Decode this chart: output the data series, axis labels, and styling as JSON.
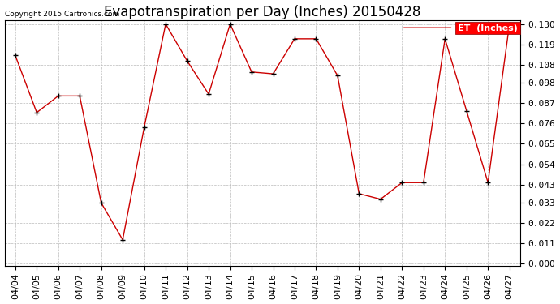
{
  "title": "Evapotranspiration per Day (Inches) 20150428",
  "copyright_text": "Copyright 2015 Cartronics.com",
  "legend_label": "ET  (Inches)",
  "dates": [
    "04/04",
    "04/05",
    "04/06",
    "04/07",
    "04/08",
    "04/09",
    "04/10",
    "04/11",
    "04/12",
    "04/13",
    "04/14",
    "04/15",
    "04/16",
    "04/17",
    "04/18",
    "04/19",
    "04/20",
    "04/21",
    "04/22",
    "04/23",
    "04/24",
    "04/25",
    "04/26",
    "04/27"
  ],
  "values": [
    0.113,
    0.082,
    0.091,
    0.091,
    0.033,
    0.013,
    0.074,
    0.13,
    0.11,
    0.092,
    0.13,
    0.104,
    0.103,
    0.122,
    0.122,
    0.102,
    0.038,
    0.035,
    0.044,
    0.044,
    0.122,
    0.083,
    0.044,
    0.13
  ],
  "ylim_min": -0.001,
  "ylim_max": 0.132,
  "yticks": [
    0.0,
    0.011,
    0.022,
    0.033,
    0.043,
    0.054,
    0.065,
    0.076,
    0.087,
    0.098,
    0.108,
    0.119,
    0.13
  ],
  "line_color": "#cc0000",
  "marker_color": "#000000",
  "bg_color": "#ffffff",
  "grid_color": "#bbbbbb",
  "title_fontsize": 12,
  "tick_fontsize": 8,
  "legend_bg": "#ff0000",
  "legend_fg": "#ffffff"
}
